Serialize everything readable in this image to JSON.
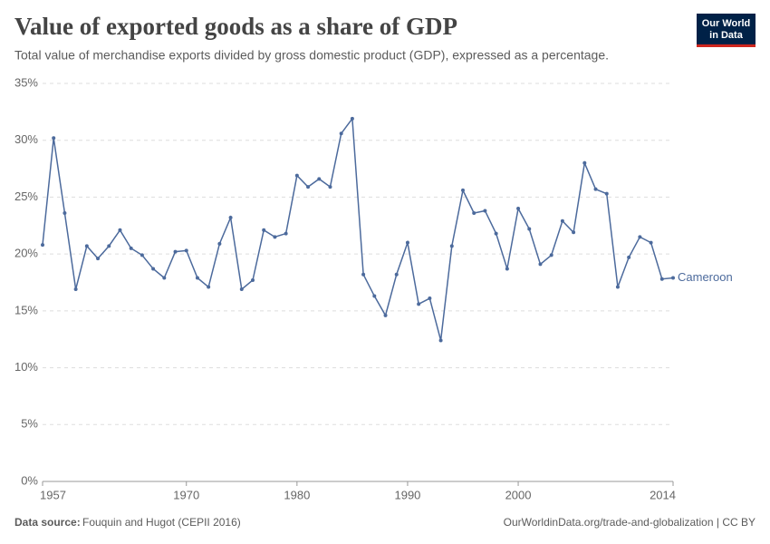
{
  "chart_data": {
    "type": "line",
    "title": "Value of exported goods as a share of GDP",
    "subtitle": "Total value of merchandise exports divided by gross domestic product (GDP), expressed as a percentage.",
    "logo": [
      "Our World",
      "in Data"
    ],
    "source_label": "Data source:",
    "source": "Fouquin and Hugot (CEPII 2016)",
    "url_license": "OurWorldinData.org/trade-and-globalization | CC BY",
    "x": [
      1957,
      1958,
      1959,
      1960,
      1961,
      1962,
      1963,
      1964,
      1965,
      1966,
      1967,
      1968,
      1969,
      1970,
      1971,
      1972,
      1973,
      1974,
      1975,
      1976,
      1977,
      1978,
      1979,
      1980,
      1981,
      1982,
      1983,
      1984,
      1985,
      1986,
      1987,
      1988,
      1989,
      1990,
      1991,
      1992,
      1993,
      1994,
      1995,
      1996,
      1997,
      1998,
      1999,
      2000,
      2001,
      2002,
      2003,
      2004,
      2005,
      2006,
      2007,
      2008,
      2009,
      2010,
      2011,
      2012,
      2013,
      2014
    ],
    "series": [
      {
        "name": "Cameroon",
        "color": "#4c6a9c",
        "values": [
          20.8,
          30.2,
          23.6,
          16.9,
          20.7,
          19.6,
          20.7,
          22.1,
          20.5,
          19.9,
          18.7,
          17.9,
          20.2,
          20.3,
          17.9,
          17.1,
          20.9,
          23.2,
          16.9,
          17.7,
          22.1,
          21.5,
          21.8,
          26.9,
          25.9,
          26.6,
          25.9,
          30.6,
          31.9,
          18.2,
          16.3,
          14.6,
          18.2,
          21.0,
          15.6,
          16.1,
          12.4,
          20.7,
          25.6,
          23.6,
          23.8,
          21.8,
          18.7,
          24.0,
          22.2,
          19.1,
          19.9,
          22.9,
          21.9,
          28.0,
          25.7,
          25.3,
          17.1,
          19.7,
          21.5,
          21.0,
          17.8,
          17.9
        ]
      }
    ],
    "xlim": [
      1957,
      2014
    ],
    "xticks": [
      1957,
      1970,
      1980,
      1990,
      2000,
      2014
    ],
    "ylim": [
      0,
      35
    ],
    "yticks": [
      {
        "value": 0,
        "label": "0%"
      },
      {
        "value": 5,
        "label": "5%"
      },
      {
        "value": 10,
        "label": "10%"
      },
      {
        "value": 15,
        "label": "15%"
      },
      {
        "value": 20,
        "label": "20%"
      },
      {
        "value": 25,
        "label": "25%"
      },
      {
        "value": 30,
        "label": "30%"
      },
      {
        "value": 35,
        "label": "35%"
      }
    ],
    "grid": true
  }
}
